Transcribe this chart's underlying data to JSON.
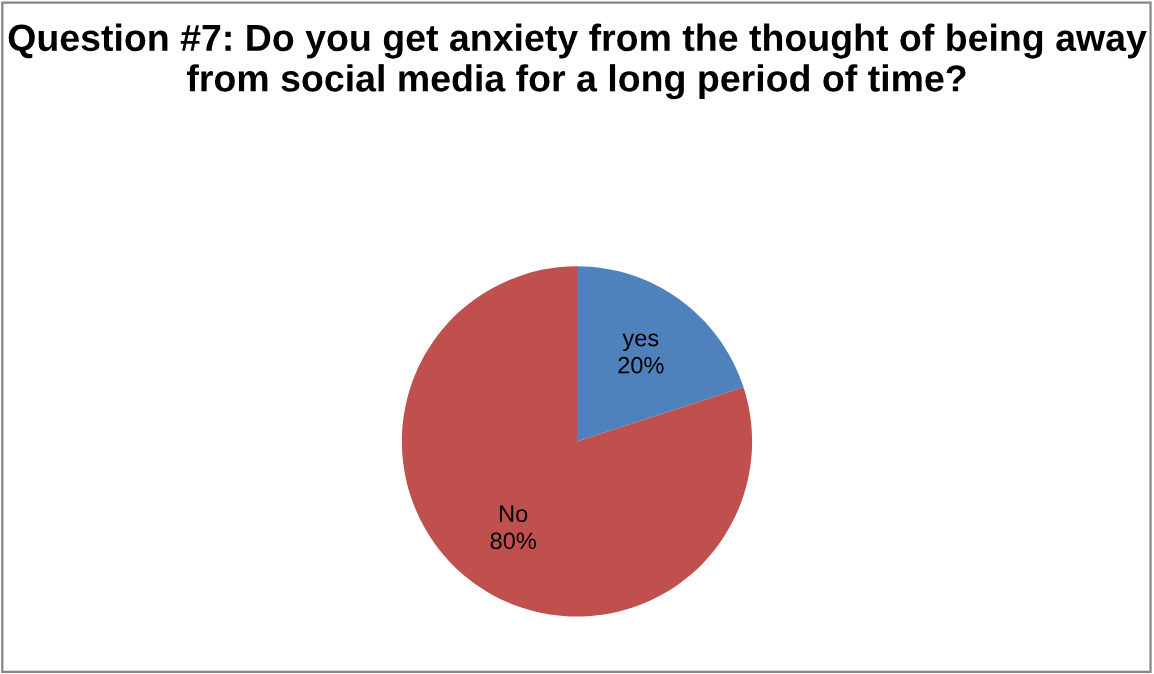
{
  "chart_data": {
    "type": "pie",
    "title": "Question #7: Do you get anxiety from the thought of being away from social media for a long period of time?",
    "categories": [
      "yes",
      "No"
    ],
    "values": [
      20,
      80
    ],
    "colors": [
      "#4f81bd",
      "#c0504d"
    ],
    "value_labels": [
      "20%",
      "80%"
    ],
    "legend": false
  }
}
